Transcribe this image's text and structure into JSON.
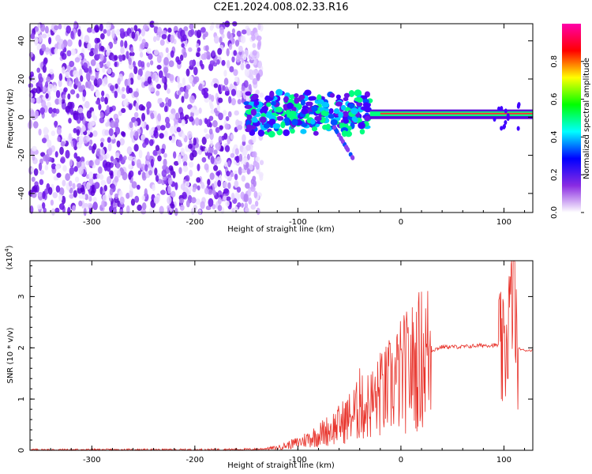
{
  "title": "C2E1.2024.008.02.33.R16",
  "chart_data": [
    {
      "type": "heatmap",
      "xlabel": "Height of straight line (km)",
      "ylabel": "Frequency (Hz)",
      "xlim": [
        -360,
        128
      ],
      "ylim": [
        -50,
        49
      ],
      "x_ticks": [
        -300,
        -200,
        -100,
        0,
        100
      ],
      "y_ticks": [
        -40,
        -20,
        0,
        20,
        40
      ],
      "colorbar": {
        "label": "Normalized spectral amplitude",
        "range": [
          0,
          1
        ],
        "ticks": [
          0.0,
          0.2,
          0.4,
          0.6,
          0.8
        ],
        "colors": [
          "#ffffff",
          "#8a2be2",
          "#0000ff",
          "#00ffff",
          "#00ff00",
          "#ffff00",
          "#ff0000",
          "#ff00aa"
        ]
      },
      "features": {
        "noise_region_x": [
          -360,
          -135
        ],
        "signal_band_center_hz": 2,
        "signal_start_x": -150
      }
    },
    {
      "type": "line",
      "xlabel": "Height of straight line (km)",
      "ylabel": "SNR (10 * v/v)",
      "y_scale_label": "(x10",
      "y_scale_exp": "4",
      "xlim": [
        -360,
        128
      ],
      "ylim": [
        0,
        3.7
      ],
      "x_ticks": [
        -300,
        -200,
        -100,
        0,
        100
      ],
      "y_ticks": [
        0,
        1,
        2,
        3
      ],
      "color": "#e8322a",
      "series_points": [
        [
          -360,
          0.01
        ],
        [
          -300,
          0.01
        ],
        [
          -200,
          0.01
        ],
        [
          -140,
          0.02
        ],
        [
          -120,
          0.05
        ],
        [
          -100,
          0.15
        ],
        [
          -80,
          0.3
        ],
        [
          -60,
          0.5
        ],
        [
          -50,
          0.65
        ],
        [
          -40,
          0.8
        ],
        [
          -30,
          0.9
        ],
        [
          -20,
          1.05
        ],
        [
          -10,
          1.25
        ],
        [
          0,
          1.45
        ],
        [
          10,
          1.6
        ],
        [
          20,
          1.8
        ],
        [
          30,
          1.95
        ],
        [
          40,
          2.02
        ],
        [
          60,
          2.02
        ],
        [
          80,
          2.05
        ],
        [
          95,
          2.05
        ],
        [
          100,
          1.7
        ],
        [
          105,
          2.6
        ],
        [
          110,
          3.2
        ],
        [
          112,
          2.0
        ],
        [
          120,
          1.95
        ],
        [
          128,
          1.95
        ]
      ],
      "peaks": [
        [
          -40,
          1.6
        ],
        [
          -20,
          1.9
        ],
        [
          -10,
          1.65
        ],
        [
          105,
          3.4
        ],
        [
          110,
          3.7
        ]
      ]
    }
  ]
}
